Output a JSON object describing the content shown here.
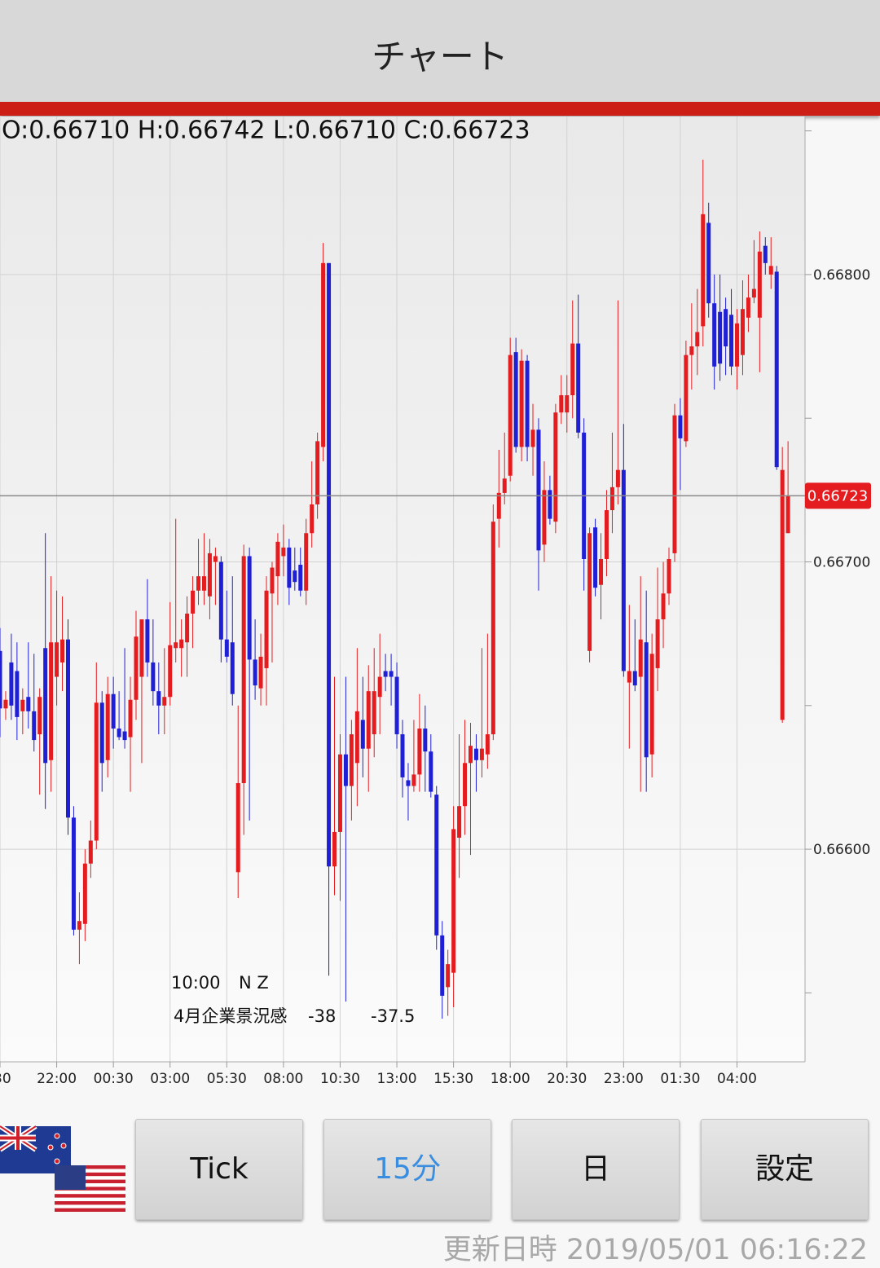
{
  "header": {
    "title": "チャート"
  },
  "chart_data": {
    "type": "candlestick",
    "ohlc_header": "O:0.66710 H:0.66742 L:0.66710 C:0.66723",
    "up_color": "#e51c1f",
    "down_color": "#1f1fd6",
    "candles": [
      [
        0.66669,
        0.66677,
        0.66639,
        0.66649
      ],
      [
        0.66649,
        0.66655,
        0.66645,
        0.66652
      ],
      [
        0.66665,
        0.66675,
        0.66645,
        0.6665
      ],
      [
        0.66662,
        0.66672,
        0.66638,
        0.66646
      ],
      [
        0.66648,
        0.66656,
        0.6664,
        0.66652
      ],
      [
        0.66653,
        0.66672,
        0.66642,
        0.66648
      ],
      [
        0.66648,
        0.66668,
        0.66634,
        0.66638
      ],
      [
        0.6664,
        0.66656,
        0.66619,
        0.66653
      ],
      [
        0.6667,
        0.6671,
        0.66614,
        0.6663
      ],
      [
        0.66631,
        0.66695,
        0.6662,
        0.66672
      ],
      [
        0.6666,
        0.6669,
        0.6665,
        0.66672
      ],
      [
        0.66665,
        0.66688,
        0.66655,
        0.66673
      ],
      [
        0.66673,
        0.6668,
        0.66605,
        0.66611
      ],
      [
        0.66611,
        0.66615,
        0.6657,
        0.66572
      ],
      [
        0.66572,
        0.66585,
        0.6656,
        0.66575
      ],
      [
        0.66574,
        0.666,
        0.66568,
        0.66595
      ],
      [
        0.66595,
        0.6661,
        0.6659,
        0.66603
      ],
      [
        0.66603,
        0.66665,
        0.666,
        0.66651
      ],
      [
        0.66651,
        0.66655,
        0.6662,
        0.6663
      ],
      [
        0.66631,
        0.6666,
        0.66625,
        0.66654
      ],
      [
        0.66654,
        0.6666,
        0.66635,
        0.66642
      ],
      [
        0.66642,
        0.66655,
        0.66638,
        0.66639
      ],
      [
        0.66641,
        0.6667,
        0.66635,
        0.66638
      ],
      [
        0.66639,
        0.6666,
        0.6662,
        0.66652
      ],
      [
        0.66652,
        0.66683,
        0.66645,
        0.66674
      ],
      [
        0.6666,
        0.6668,
        0.6663,
        0.6668
      ],
      [
        0.6668,
        0.66694,
        0.6666,
        0.66665
      ],
      [
        0.66665,
        0.6668,
        0.6665,
        0.66655
      ],
      [
        0.66655,
        0.66665,
        0.6664,
        0.6665
      ],
      [
        0.6665,
        0.6667,
        0.6664,
        0.66653
      ],
      [
        0.66653,
        0.66686,
        0.6665,
        0.66671
      ],
      [
        0.6667,
        0.66715,
        0.66665,
        0.66672
      ],
      [
        0.6667,
        0.6668,
        0.6666,
        0.66673
      ],
      [
        0.66672,
        0.66688,
        0.6666,
        0.66682
      ],
      [
        0.66682,
        0.66695,
        0.6667,
        0.6669
      ],
      [
        0.6669,
        0.66708,
        0.66685,
        0.66695
      ],
      [
        0.6669,
        0.6671,
        0.66685,
        0.66695
      ],
      [
        0.66688,
        0.66708,
        0.6668,
        0.66703
      ],
      [
        0.667,
        0.66705,
        0.66685,
        0.66702
      ],
      [
        0.667,
        0.66702,
        0.66665,
        0.66673
      ],
      [
        0.66673,
        0.6669,
        0.66665,
        0.66667
      ],
      [
        0.66672,
        0.66695,
        0.6665,
        0.66654
      ],
      [
        0.66592,
        0.6665,
        0.66583,
        0.66623
      ],
      [
        0.66623,
        0.66706,
        0.66605,
        0.66702
      ],
      [
        0.66702,
        0.66705,
        0.6661,
        0.66666
      ],
      [
        0.66666,
        0.6668,
        0.66652,
        0.66657
      ],
      [
        0.66656,
        0.66675,
        0.6665,
        0.66667
      ],
      [
        0.66663,
        0.66695,
        0.6665,
        0.6669
      ],
      [
        0.66689,
        0.667,
        0.66665,
        0.66698
      ],
      [
        0.66695,
        0.6671,
        0.66685,
        0.66707
      ],
      [
        0.66702,
        0.66713,
        0.66695,
        0.66705
      ],
      [
        0.66705,
        0.66708,
        0.66685,
        0.66691
      ],
      [
        0.66697,
        0.66705,
        0.6669,
        0.66693
      ],
      [
        0.66699,
        0.66705,
        0.66688,
        0.6669
      ],
      [
        0.6669,
        0.66715,
        0.66685,
        0.6671
      ],
      [
        0.6671,
        0.66735,
        0.66705,
        0.6672
      ],
      [
        0.6672,
        0.66745,
        0.66715,
        0.66742
      ],
      [
        0.6674,
        0.66811,
        0.66735,
        0.66804
      ],
      [
        0.66804,
        0.66804,
        0.66556,
        0.66594
      ],
      [
        0.66594,
        0.6666,
        0.66584,
        0.66606
      ],
      [
        0.66606,
        0.6664,
        0.66582,
        0.66633
      ],
      [
        0.66633,
        0.6666,
        0.66547,
        0.66622
      ],
      [
        0.66622,
        0.66645,
        0.6661,
        0.6664
      ],
      [
        0.6663,
        0.6667,
        0.66615,
        0.66648
      ],
      [
        0.66645,
        0.6666,
        0.66625,
        0.66635
      ],
      [
        0.66635,
        0.66664,
        0.6662,
        0.66655
      ],
      [
        0.6664,
        0.6667,
        0.66632,
        0.66655
      ],
      [
        0.66653,
        0.66675,
        0.6664,
        0.6666
      ],
      [
        0.66662,
        0.66668,
        0.66655,
        0.6666
      ],
      [
        0.66662,
        0.66668,
        0.6665,
        0.6666
      ],
      [
        0.6666,
        0.66665,
        0.66635,
        0.6664
      ],
      [
        0.6664,
        0.66645,
        0.66618,
        0.66625
      ],
      [
        0.66624,
        0.6663,
        0.6661,
        0.66622
      ],
      [
        0.66622,
        0.66645,
        0.6662,
        0.66626
      ],
      [
        0.66626,
        0.66654,
        0.6662,
        0.66642
      ],
      [
        0.66642,
        0.6665,
        0.6662,
        0.66634
      ],
      [
        0.66634,
        0.6664,
        0.66618,
        0.6662
      ],
      [
        0.66619,
        0.66622,
        0.66565,
        0.6657
      ],
      [
        0.6657,
        0.66575,
        0.66541,
        0.66549
      ],
      [
        0.66552,
        0.66565,
        0.66542,
        0.6656
      ],
      [
        0.66557,
        0.66615,
        0.66545,
        0.66607
      ],
      [
        0.66604,
        0.6664,
        0.6659,
        0.66615
      ],
      [
        0.66615,
        0.66645,
        0.66605,
        0.6663
      ],
      [
        0.6663,
        0.66644,
        0.66598,
        0.66636
      ],
      [
        0.66635,
        0.6664,
        0.6662,
        0.66631
      ],
      [
        0.66631,
        0.6667,
        0.66625,
        0.66635
      ],
      [
        0.66633,
        0.66675,
        0.66628,
        0.6664
      ],
      [
        0.6664,
        0.6672,
        0.66638,
        0.66714
      ],
      [
        0.66715,
        0.66739,
        0.66705,
        0.66724
      ],
      [
        0.66724,
        0.66745,
        0.6672,
        0.66729
      ],
      [
        0.6673,
        0.66778,
        0.66728,
        0.66772
      ],
      [
        0.66773,
        0.66778,
        0.66738,
        0.6674
      ],
      [
        0.6674,
        0.66774,
        0.66735,
        0.6677
      ],
      [
        0.6677,
        0.66772,
        0.66735,
        0.6674
      ],
      [
        0.6674,
        0.66755,
        0.6673,
        0.66746
      ],
      [
        0.66746,
        0.6675,
        0.6669,
        0.66704
      ],
      [
        0.66706,
        0.66735,
        0.667,
        0.66725
      ],
      [
        0.66725,
        0.6673,
        0.66713,
        0.66715
      ],
      [
        0.66714,
        0.66755,
        0.6671,
        0.66752
      ],
      [
        0.66752,
        0.66765,
        0.66748,
        0.66758
      ],
      [
        0.66752,
        0.66765,
        0.66745,
        0.66758
      ],
      [
        0.66758,
        0.66791,
        0.6675,
        0.66776
      ],
      [
        0.66776,
        0.66793,
        0.66743,
        0.66745
      ],
      [
        0.66745,
        0.6675,
        0.6669,
        0.66701
      ],
      [
        0.66669,
        0.66712,
        0.66665,
        0.6671
      ],
      [
        0.66712,
        0.66715,
        0.66688,
        0.66691
      ],
      [
        0.66692,
        0.6671,
        0.6668,
        0.66701
      ],
      [
        0.66701,
        0.66725,
        0.66695,
        0.66718
      ],
      [
        0.66718,
        0.66745,
        0.6671,
        0.66726
      ],
      [
        0.66726,
        0.66791,
        0.6672,
        0.66732
      ],
      [
        0.66732,
        0.66748,
        0.6666,
        0.66662
      ],
      [
        0.66658,
        0.66685,
        0.66635,
        0.66662
      ],
      [
        0.66662,
        0.6668,
        0.66655,
        0.66657
      ],
      [
        0.6666,
        0.66695,
        0.6662,
        0.66673
      ],
      [
        0.66672,
        0.6669,
        0.6662,
        0.66632
      ],
      [
        0.66633,
        0.66675,
        0.66625,
        0.66668
      ],
      [
        0.66663,
        0.66698,
        0.66655,
        0.6668
      ],
      [
        0.6668,
        0.667,
        0.6667,
        0.66689
      ],
      [
        0.66689,
        0.66705,
        0.66685,
        0.66701
      ],
      [
        0.66703,
        0.66755,
        0.667,
        0.66751
      ],
      [
        0.66751,
        0.66757,
        0.66725,
        0.66743
      ],
      [
        0.66742,
        0.66777,
        0.6674,
        0.66772
      ],
      [
        0.66772,
        0.6679,
        0.6676,
        0.66775
      ],
      [
        0.66775,
        0.66795,
        0.66765,
        0.6678
      ],
      [
        0.66782,
        0.6684,
        0.66775,
        0.66821
      ],
      [
        0.66818,
        0.66825,
        0.66785,
        0.6679
      ],
      [
        0.6679,
        0.668,
        0.6676,
        0.66768
      ],
      [
        0.66787,
        0.668,
        0.66763,
        0.66769
      ],
      [
        0.66788,
        0.66792,
        0.66765,
        0.66775
      ],
      [
        0.66786,
        0.66795,
        0.66765,
        0.66768
      ],
      [
        0.66768,
        0.66788,
        0.6676,
        0.66783
      ],
      [
        0.66772,
        0.66798,
        0.66765,
        0.66788
      ],
      [
        0.66785,
        0.668,
        0.6678,
        0.66792
      ],
      [
        0.66792,
        0.66812,
        0.6679,
        0.66795
      ],
      [
        0.66785,
        0.66815,
        0.66766,
        0.66808
      ],
      [
        0.6681,
        0.66813,
        0.668,
        0.66804
      ],
      [
        0.668,
        0.66813,
        0.66795,
        0.66803
      ],
      [
        0.66801,
        0.66803,
        0.66732,
        0.66733
      ],
      [
        0.66645,
        0.6674,
        0.66644,
        0.66732
      ],
      [
        0.6671,
        0.66742,
        0.6671,
        0.66723
      ]
    ],
    "last_price": 0.66723,
    "last_price_color": "#e51c1f",
    "xlim": [
      0,
      142
    ],
    "xticks": [
      {
        "value": 0,
        "label": ":30"
      },
      {
        "value": 10,
        "label": "22:00"
      },
      {
        "value": 20,
        "label": "00:30"
      },
      {
        "value": 30,
        "label": "03:00"
      },
      {
        "value": 40,
        "label": "05:30"
      },
      {
        "value": 50,
        "label": "08:00"
      },
      {
        "value": 60,
        "label": "10:30"
      },
      {
        "value": 70,
        "label": "13:00"
      },
      {
        "value": 80,
        "label": "15:30"
      },
      {
        "value": 90,
        "label": "18:00"
      },
      {
        "value": 100,
        "label": "20:30"
      },
      {
        "value": 110,
        "label": "23:00"
      },
      {
        "value": 120,
        "label": "01:30"
      },
      {
        "value": 130,
        "label": "04:00"
      }
    ],
    "ylim": [
      0.66526,
      0.66855
    ],
    "yticks": [
      {
        "value": 0.668,
        "label": "0.66800"
      },
      {
        "value": 0.667,
        "label": "0.66700"
      },
      {
        "value": 0.666,
        "label": "0.66600"
      }
    ],
    "yticks_minor": [
      0.6685,
      0.6675,
      0.6665,
      0.6655
    ],
    "grid": true,
    "annotation": {
      "time": "10:00",
      "country": "N Z",
      "event": "4月企業景況感",
      "actual": "-38",
      "forecast": "-37.5"
    }
  },
  "buttons": [
    {
      "label": "Tick",
      "active": false
    },
    {
      "label": "15分",
      "active": true
    },
    {
      "label": "日",
      "active": false
    },
    {
      "label": "設定",
      "active": false
    }
  ],
  "footer": {
    "updated_label": "更新日時",
    "updated_value": "2019/05/01 06:16:22"
  }
}
